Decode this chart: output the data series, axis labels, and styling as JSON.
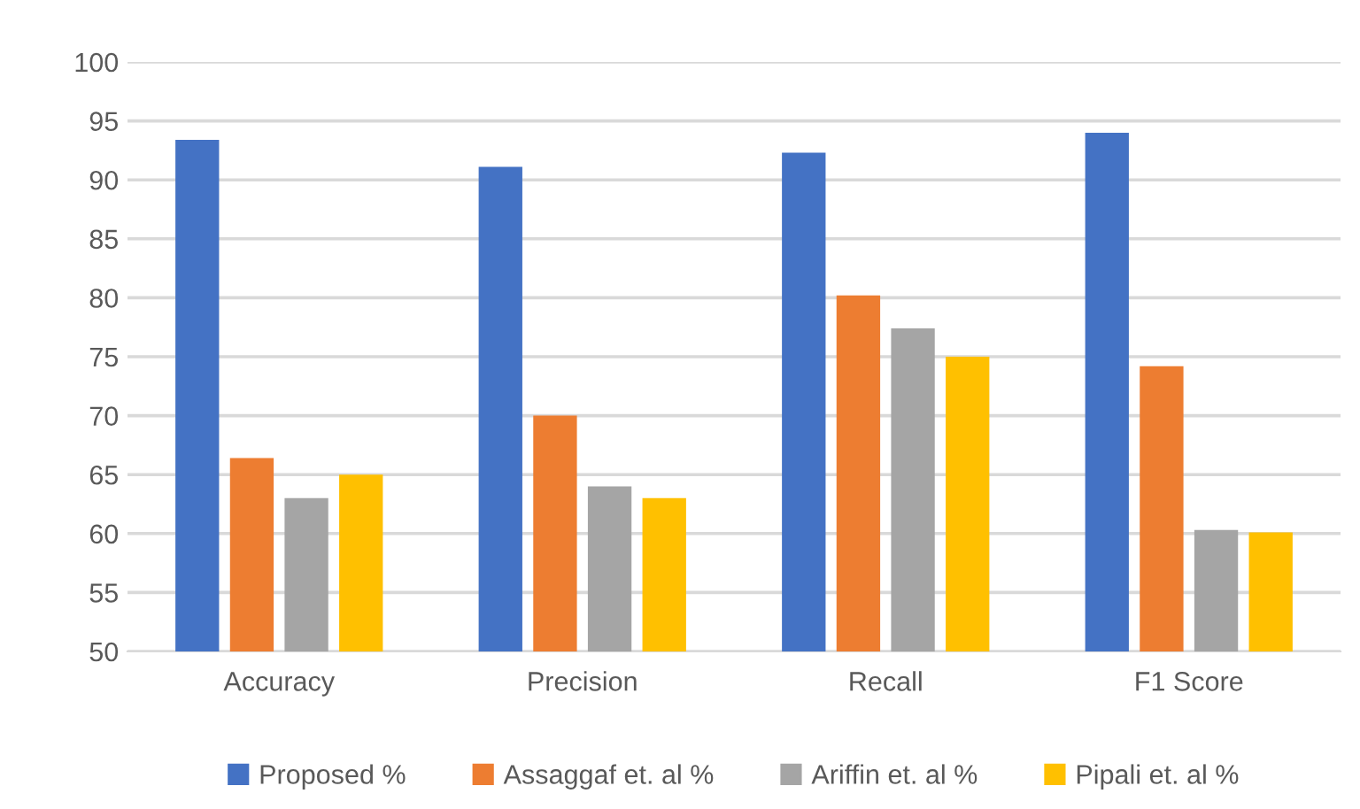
{
  "chart_data": {
    "type": "bar",
    "categories": [
      "Accuracy",
      "Precision",
      "Recall",
      "F1 Score"
    ],
    "series": [
      {
        "name": "Proposed %",
        "color": "#4472c4",
        "values": [
          93.4,
          91.1,
          92.3,
          94.0
        ]
      },
      {
        "name": "Assaggaf et. al %",
        "color": "#ed7d31",
        "values": [
          66.4,
          70.0,
          80.2,
          74.2
        ]
      },
      {
        "name": "Ariffin et. al %",
        "color": "#a5a5a5",
        "values": [
          63.0,
          64.0,
          77.4,
          60.3
        ]
      },
      {
        "name": "Pipali et. al %",
        "color": "#ffc000",
        "values": [
          65.0,
          63.0,
          75.0,
          60.1
        ]
      }
    ],
    "ylim": [
      50,
      100
    ],
    "yticks": [
      50,
      55,
      60,
      65,
      70,
      75,
      80,
      85,
      90,
      95,
      100
    ],
    "grid": "y",
    "legend": "bottom"
  }
}
